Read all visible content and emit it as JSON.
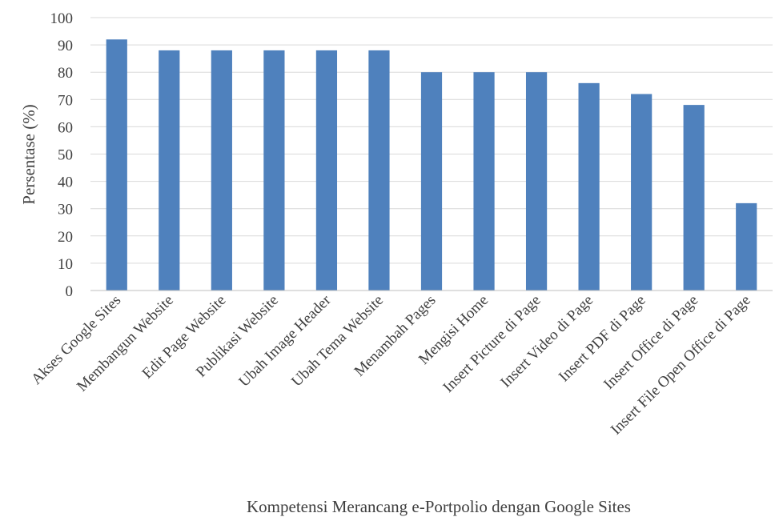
{
  "chart_data": {
    "type": "bar",
    "title": "",
    "xlabel": "Kompetensi Merancang e-Portpolio dengan Google Sites",
    "ylabel": "Persentase (%)",
    "ylim": [
      0,
      100
    ],
    "yticks": [
      "0",
      "10",
      "20",
      "30",
      "40",
      "50",
      "60",
      "70",
      "80",
      "90",
      "100"
    ],
    "categories": [
      "Akses Google Sites",
      "Membangun Website",
      "Edit Page Website",
      "Publikasi Website",
      "Ubah Image Header",
      "Ubah Tema Website",
      "Menambah Pages",
      "Mengisi Home",
      "Insert Picture di Page",
      "Insert Video di Page",
      "Insert PDF di Page",
      "Insert Office di Page",
      "Insert File Open Office di Page"
    ],
    "values": [
      92,
      88,
      88,
      88,
      88,
      88,
      80,
      80,
      80,
      76,
      72,
      68,
      32
    ],
    "grid": true,
    "legend": "none",
    "bar_color": "#4f81bd"
  }
}
